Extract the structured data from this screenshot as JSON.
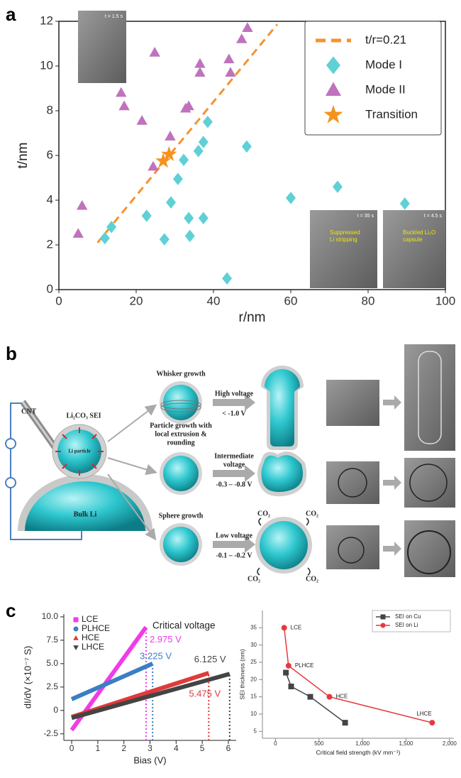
{
  "panel_labels": [
    "a",
    "b",
    "c"
  ],
  "chart_data": [
    {
      "type": "scatter",
      "xlabel": "r/nm",
      "ylabel": "t/nm",
      "xlim": [
        0,
        100
      ],
      "ylim": [
        0,
        12
      ],
      "xticks": [
        0,
        20,
        40,
        60,
        80,
        100
      ],
      "yticks": [
        0,
        2,
        4,
        6,
        8,
        10,
        12
      ],
      "legend": "upper right",
      "series": [
        {
          "name": "t/r=0.21",
          "kind": "line",
          "style": "dashed",
          "color": "#f5922e",
          "x": [
            10,
            56.5
          ],
          "values": [
            2.1,
            11.865
          ]
        },
        {
          "name": "Mode I",
          "kind": "scatter",
          "marker": "diamond",
          "color": "#5fd0d6",
          "x": [
            11.9,
            13.6,
            22.7,
            27.3,
            29,
            30.8,
            32.3,
            33.6,
            33.9,
            36.1,
            37.4,
            37.4,
            38.5,
            43.5,
            48.6,
            60,
            72.1,
            89.5
          ],
          "values": [
            2.3,
            2.8,
            3.3,
            2.25,
            3.9,
            4.95,
            5.8,
            3.2,
            2.4,
            6.2,
            6.6,
            3.2,
            7.5,
            0.5,
            6.4,
            4.1,
            4.6,
            3.85
          ]
        },
        {
          "name": "Mode II",
          "kind": "scatter",
          "marker": "triangle",
          "color": "#bf72bd",
          "x": [
            5,
            6,
            16.1,
            16.9,
            21.5,
            24.4,
            24.8,
            28.8,
            32.8,
            33.6,
            36.5,
            36.5,
            44,
            44.4,
            47.3,
            48.8
          ],
          "values": [
            2.5,
            3.75,
            8.8,
            8.2,
            7.55,
            5.5,
            10.6,
            6.85,
            8.1,
            8.2,
            9.7,
            10.1,
            10.3,
            9.7,
            11.2,
            11.7
          ]
        },
        {
          "name": "Transition",
          "kind": "scatter",
          "marker": "star",
          "color": "#f5921e",
          "x": [
            27,
            28.5
          ],
          "values": [
            5.75,
            6.05
          ]
        }
      ],
      "insets": [
        {
          "labels": [
            "t = 1.5 s"
          ]
        },
        {
          "labels": [
            "t = 35 s",
            "Suppressed",
            "Li stripping"
          ]
        },
        {
          "labels": [
            "t = 4.5 s",
            "Buckled Li₂O",
            "capsule"
          ]
        }
      ]
    },
    {
      "type": "line",
      "title": "Critical voltage",
      "xlabel": "Bias (V)",
      "ylabel": "dI/dV (×10⁻⁷ S)",
      "xlim": [
        -0.3,
        6.3
      ],
      "ylim": [
        -3.2,
        10.3
      ],
      "xticks": [
        0,
        1,
        2,
        3,
        4,
        5,
        6
      ],
      "yticks": [
        -2.5,
        0,
        2.5,
        {
          "value": 5,
          "label": "5.0"
        },
        7.5,
        {
          "value": 10,
          "label": "10.0"
        }
      ],
      "legend": "upper left",
      "series": [
        {
          "name": "LCE",
          "marker": "square",
          "color": "#f03ce8",
          "x": [
            0,
            2.85
          ],
          "values": [
            -2.1,
            8.9
          ],
          "annotation": "2.975 V"
        },
        {
          "name": "PLHCE",
          "marker": "circle",
          "color": "#3a7fc4",
          "x": [
            0,
            3.1
          ],
          "values": [
            1.2,
            5.0
          ],
          "annotation": "3.225 V"
        },
        {
          "name": "HCE",
          "marker": "triangle",
          "color": "#e03a3a",
          "x": [
            0,
            5.25
          ],
          "values": [
            -0.7,
            4.0
          ],
          "annotation": "5.475 V"
        },
        {
          "name": "LHCE",
          "marker": "triangle-down",
          "color": "#444444",
          "x": [
            0,
            6.05
          ],
          "values": [
            -0.8,
            3.9
          ],
          "annotation": "6.125 V"
        }
      ]
    },
    {
      "type": "line",
      "xlabel": "Critical field strength (kV mm⁻¹)",
      "ylabel": "SEI thickness (nm)",
      "xlim": [
        -150,
        2050
      ],
      "ylim": [
        3,
        40
      ],
      "xticks": [
        0,
        500,
        {
          "value": 1000,
          "label": "1,000"
        },
        {
          "value": 1500,
          "label": "1,500"
        },
        {
          "value": 2000,
          "label": "2,000"
        }
      ],
      "yticks": [
        5,
        10,
        15,
        20,
        25,
        30,
        35
      ],
      "legend": "upper right",
      "series": [
        {
          "name": "SEI on Cu",
          "marker": "square",
          "color": "#444444",
          "x": [
            120,
            180,
            400,
            800
          ],
          "values": [
            22,
            18,
            15,
            7.5
          ]
        },
        {
          "name": "SEI on Li",
          "marker": "circle",
          "color": "#e8383d",
          "x": [
            100,
            150,
            620,
            1800
          ],
          "values": [
            35,
            24,
            15,
            7.5
          ],
          "point_labels": [
            "LCE",
            "PLHCE",
            "HCE",
            "LHCE"
          ]
        }
      ]
    }
  ],
  "diagram_b": {
    "schematic": {
      "cnt": "CNT",
      "sei": "Li₂CO₃ SEI",
      "particle": "Li particle",
      "bulk": "Bulk Li"
    },
    "rows": [
      {
        "title": [
          "Whisker growth"
        ],
        "voltage": [
          "High voltage"
        ],
        "range": "< -1.0 V"
      },
      {
        "title": [
          "Particle growth with",
          "local extrusion &",
          "rounding"
        ],
        "voltage": [
          "Intermediate",
          "voltage"
        ],
        "range": "-0.3 – -0.8 V"
      },
      {
        "title": [
          "Sphere growth"
        ],
        "voltage": [
          "Low voltage"
        ],
        "range": "-0.1 – -0.2 V",
        "gases": [
          "CO₂",
          "CO₂",
          "CO₂",
          "CO₂"
        ]
      }
    ]
  }
}
